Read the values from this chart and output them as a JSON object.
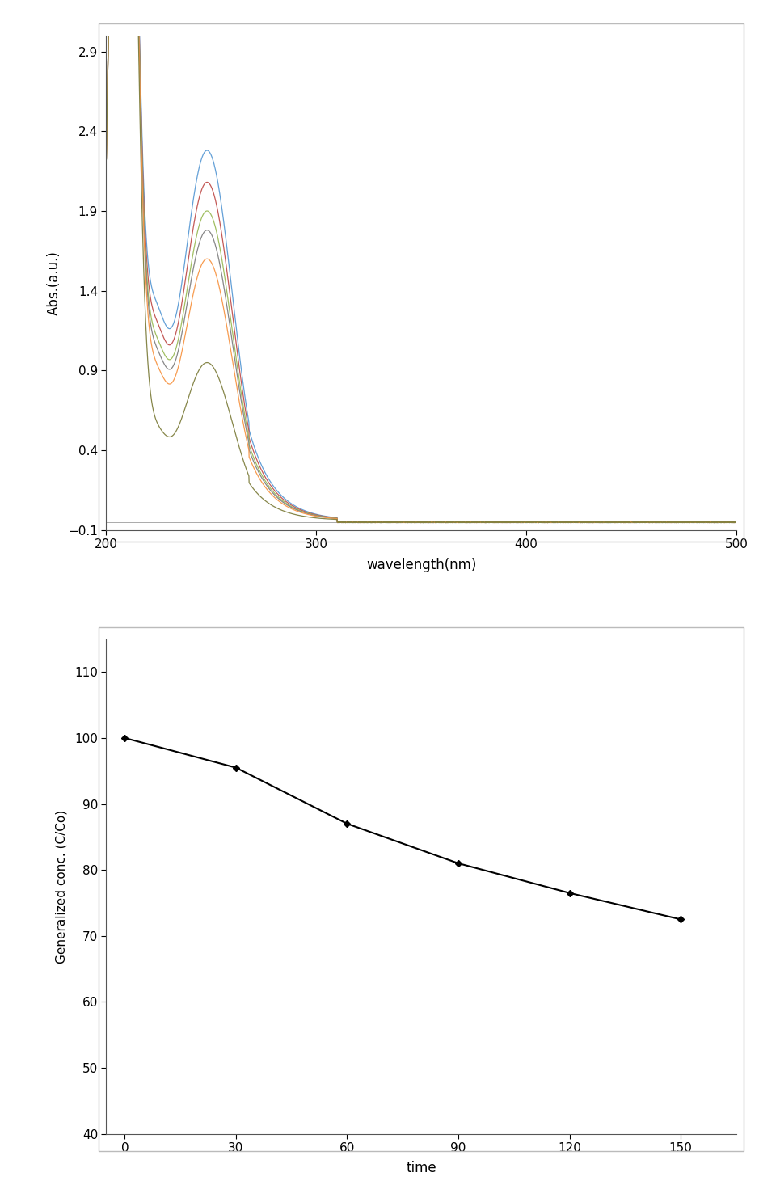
{
  "uv_xlim": [
    200,
    500
  ],
  "uv_ylim": [
    -0.1,
    3.0
  ],
  "uv_yticks": [
    -0.1,
    0.4,
    0.9,
    1.4,
    1.9,
    2.4,
    2.9
  ],
  "uv_xticks": [
    200,
    300,
    400,
    500
  ],
  "uv_xlabel": "wavelength(nm)",
  "uv_ylabel": "Abs.(a.u.)",
  "line_colors": [
    "#5b9bd5",
    "#c0504d",
    "#9bbb59",
    "#808080",
    "#f79646",
    "#808040"
  ],
  "peak_heights": [
    2.28,
    2.08,
    1.9,
    1.78,
    1.6,
    0.95
  ],
  "conc_x": [
    0,
    30,
    60,
    90,
    120,
    150
  ],
  "conc_y": [
    100,
    95.5,
    87.0,
    81.0,
    76.5,
    72.5
  ],
  "conc_xlim": [
    -5,
    165
  ],
  "conc_ylim": [
    40,
    115
  ],
  "conc_yticks": [
    40,
    50,
    60,
    70,
    80,
    90,
    100,
    110
  ],
  "conc_xticks": [
    0,
    30,
    60,
    90,
    120,
    150
  ],
  "conc_xlabel": "time",
  "conc_ylabel": "Generalized conc. (C/Co)",
  "conc_line_color": "#000000",
  "conc_marker": "D",
  "conc_marker_size": 4,
  "background_color": "#ffffff",
  "fig_width": 9.39,
  "fig_height": 14.61,
  "dpi": 100
}
